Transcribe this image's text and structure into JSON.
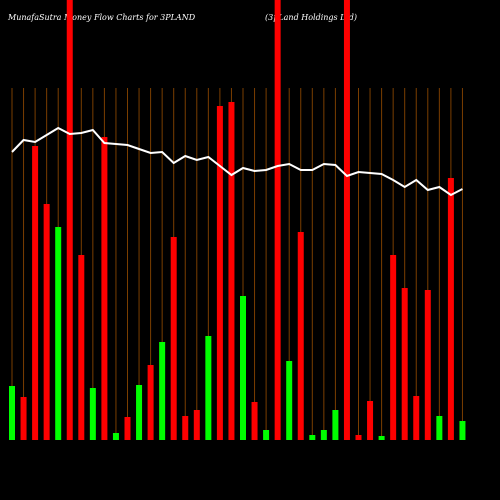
{
  "chart_data": {
    "type": "bar",
    "title": "MunafaSutra Money Flow Charts for 3PLAND",
    "subtitle": "(3pLand Holdings Ltd)",
    "values": [
      54,
      43,
      294,
      236,
      213,
      440,
      185,
      52,
      303,
      7,
      23,
      55,
      75,
      98,
      203,
      24,
      30,
      104,
      334,
      338,
      144,
      38,
      10,
      440,
      79,
      208,
      5,
      10,
      30,
      440,
      5,
      39,
      4,
      185,
      152,
      44,
      150,
      24,
      262,
      19
    ],
    "colors": [
      "#00ff00",
      "#ff0000",
      "#ff0000",
      "#ff0000",
      "#00ff00",
      "#ff0000",
      "#ff0000",
      "#00ff00",
      "#ff0000",
      "#00ff00",
      "#ff0000",
      "#00ff00",
      "#ff0000",
      "#00ff00",
      "#ff0000",
      "#ff0000",
      "#ff0000",
      "#00ff00",
      "#ff0000",
      "#ff0000",
      "#00ff00",
      "#ff0000",
      "#00ff00",
      "#ff0000",
      "#00ff00",
      "#ff0000",
      "#00ff00",
      "#00ff00",
      "#00ff00",
      "#ff0000",
      "#ff0000",
      "#ff0000",
      "#00ff00",
      "#ff0000",
      "#ff0000",
      "#ff0000",
      "#ff0000",
      "#00ff00",
      "#ff0000",
      "#00ff00"
    ],
    "line": {
      "color": "#ffffff",
      "values": [
        288,
        300,
        298,
        305,
        312,
        306,
        307,
        310,
        297,
        296,
        295,
        291,
        287,
        288,
        277,
        284,
        280,
        283,
        274,
        265,
        272,
        269,
        270,
        274,
        276,
        270,
        270,
        276,
        275,
        264,
        268,
        267,
        266,
        260,
        253,
        260,
        250,
        253,
        245,
        251
      ]
    },
    "ylim": [
      0,
      440
    ],
    "grid": true,
    "grid_color": "#7a3e00"
  }
}
